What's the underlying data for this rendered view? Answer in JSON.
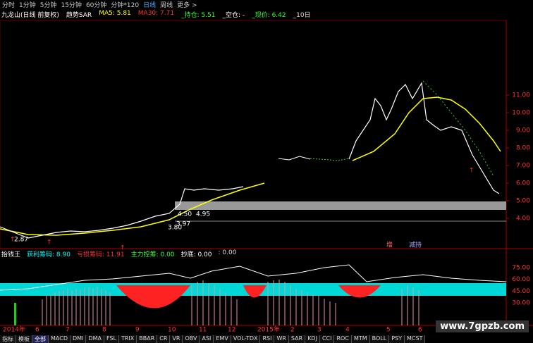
{
  "toolbar": {
    "tabs": [
      "分时",
      "1分钟",
      "5分钟",
      "15分钟",
      "60分钟",
      "分钟*120",
      "日线",
      "周线",
      "更多 >"
    ]
  },
  "info": {
    "name": "九龙山(日线 前复权)",
    "items": [
      "趋势SAR",
      "MA5: 5.81",
      "MA30: 7.71",
      "_持仓: 5.51",
      "_空仓: -",
      "_现价: 6.42",
      "_10日"
    ]
  },
  "price_axis": {
    "ticks": [
      "11.00",
      "10.00",
      "9.00",
      "8.00",
      "7.00",
      "6.00",
      "5.00",
      "4.00"
    ]
  },
  "price_labels": [
    "4.50",
    "4.95",
    "3.80",
    "3.97",
    "2.87"
  ],
  "markers": [
    "增",
    "减持"
  ],
  "indicator": {
    "title": "抬钱王",
    "items": [
      "获利筹码: 8.90",
      "亏损筹码: 11.91",
      "主力控筹: 0.00",
      "抄底: 0.00",
      ": 0.00"
    ]
  },
  "indicator_axis": {
    "ticks": [
      "75.00",
      "60.00",
      "45.00",
      "30.00"
    ]
  },
  "dates": [
    "2014年",
    "6",
    "7",
    "8",
    "9",
    "10",
    "11",
    "12",
    "2015年",
    "2",
    "3",
    "4",
    "5",
    "6"
  ],
  "bottom_tabs": [
    "指标",
    "模板",
    "全部",
    "MACD",
    "DMI",
    "DMA",
    "FSL",
    "TRIX",
    "BBAR",
    "CR",
    "VR",
    "OBV",
    "ASI",
    "EMV",
    "VOL-TDX",
    "RSI",
    "WR",
    "SAR",
    "KDJ",
    "CCI",
    "ROC",
    "MTM",
    "BOLL",
    "PSY",
    "MCST"
  ],
  "watermark": "www.7gpzb.com"
}
